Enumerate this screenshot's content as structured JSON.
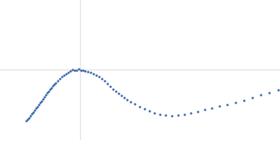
{
  "chart_data": {
    "type": "scatter",
    "x": [
      -0.77,
      -0.75,
      -0.73,
      -0.71,
      -0.69,
      -0.67,
      -0.65,
      -0.63,
      -0.61,
      -0.59,
      -0.57,
      -0.55,
      -0.53,
      -0.51,
      -0.49,
      -0.47,
      -0.45,
      -0.43,
      -0.41,
      -0.39,
      -0.37,
      -0.35,
      -0.32,
      -0.29,
      -0.26,
      -0.23,
      -0.2,
      -0.17,
      -0.14,
      -0.11,
      -0.08,
      -0.05,
      -0.02,
      0.01,
      0.04,
      0.07,
      0.11,
      0.15,
      0.19,
      0.23,
      0.27,
      0.31,
      0.35,
      0.39,
      0.43,
      0.47,
      0.51,
      0.55,
      0.59,
      0.63,
      0.67,
      0.72,
      0.78,
      0.85,
      0.92,
      0.99,
      1.06,
      1.14,
      1.22,
      1.31,
      1.4,
      1.49,
      1.58,
      1.68,
      1.78,
      1.88,
      1.99,
      2.1,
      2.22,
      2.34,
      2.46,
      2.58,
      2.7,
      2.83
    ],
    "series": [
      {
        "color": "#3a68ad",
        "values": [
          -0.73,
          -0.71,
          -0.69,
          -0.66,
          -0.63,
          -0.61,
          -0.58,
          -0.55,
          -0.53,
          -0.5,
          -0.47,
          -0.45,
          -0.42,
          -0.39,
          -0.36,
          -0.33,
          -0.31,
          -0.28,
          -0.26,
          -0.23,
          -0.21,
          -0.19,
          -0.16,
          -0.13,
          -0.1,
          -0.08,
          -0.06,
          -0.04,
          -0.02,
          0,
          -0.01,
          -0.01,
          0.01,
          -0.01,
          -0.01,
          -0.02,
          -0.03,
          -0.04,
          -0.06,
          -0.08,
          -0.1,
          -0.13,
          -0.16,
          -0.2,
          -0.24,
          -0.28,
          -0.31,
          -0.34,
          -0.37,
          -0.4,
          -0.43,
          -0.46,
          -0.49,
          -0.53,
          -0.56,
          -0.59,
          -0.62,
          -0.64,
          -0.65,
          -0.66,
          -0.65,
          -0.64,
          -0.62,
          -0.6,
          -0.57,
          -0.55,
          -0.52,
          -0.5,
          -0.47,
          -0.44,
          -0.4,
          -0.36,
          -0.33,
          -0.29
        ]
      }
    ],
    "xlim": [
      -1.15,
      2.85
    ],
    "ylim": [
      -1,
      1
    ],
    "zero_lines": true
  }
}
